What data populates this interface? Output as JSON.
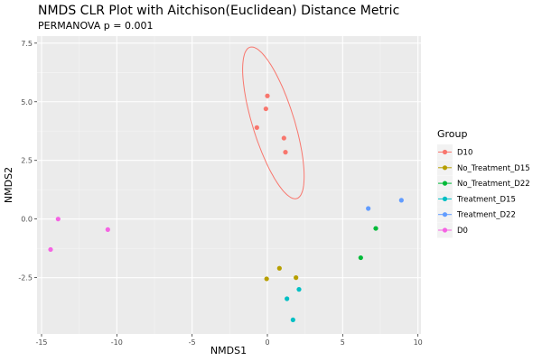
{
  "chart_data": {
    "type": "scatter",
    "title": "NMDS CLR Plot with Aitchison(Euclidean) Distance Metric",
    "subtitle": "PERMANOVA p = 0.001",
    "xlabel": "NMDS1",
    "ylabel": "NMDS2",
    "xlim": [
      -15.3,
      10.2
    ],
    "ylim": [
      -4.9,
      7.8
    ],
    "x_ticks": [
      -15,
      -10,
      -5,
      0,
      5,
      10
    ],
    "x_tick_labels": [
      "-15",
      "-10",
      "-5",
      "0",
      "5",
      "10"
    ],
    "y_ticks": [
      -2.5,
      0,
      2.5,
      5,
      7.5
    ],
    "y_tick_labels": [
      "-2.5",
      "0.0",
      "2.5",
      "5.0",
      "7.5"
    ],
    "grid": true,
    "legend": {
      "title": "Group",
      "position": "right"
    },
    "series": [
      {
        "name": "D10",
        "color": "#F8766D",
        "points": [
          [
            0.0,
            5.25
          ],
          [
            -0.1,
            4.7
          ],
          [
            -0.7,
            3.9
          ],
          [
            1.1,
            3.45
          ],
          [
            1.2,
            2.85
          ]
        ],
        "ellipse": {
          "cx": 0.4,
          "cy": 4.1,
          "rx": 3.6,
          "ry": 1.3,
          "angle_deg": -62
        }
      },
      {
        "name": "No_Treatment_D15",
        "color": "#B79F00",
        "points": [
          [
            0.8,
            -2.1
          ],
          [
            -0.05,
            -2.55
          ],
          [
            1.9,
            -2.5
          ]
        ]
      },
      {
        "name": "No_Treatment_D22",
        "color": "#00BA38",
        "points": [
          [
            7.2,
            -0.4
          ],
          [
            6.2,
            -1.65
          ]
        ]
      },
      {
        "name": "Treatment_D15",
        "color": "#00BFC4",
        "points": [
          [
            2.1,
            -3.0
          ],
          [
            1.3,
            -3.4
          ],
          [
            1.7,
            -4.3
          ]
        ]
      },
      {
        "name": "Treatment_D22",
        "color": "#619CFF",
        "points": [
          [
            8.9,
            0.8
          ],
          [
            6.7,
            0.45
          ]
        ]
      },
      {
        "name": "D0",
        "color": "#F564E3",
        "points": [
          [
            -13.9,
            0.0
          ],
          [
            -10.6,
            -0.45
          ],
          [
            -14.4,
            -1.3
          ]
        ]
      }
    ]
  }
}
